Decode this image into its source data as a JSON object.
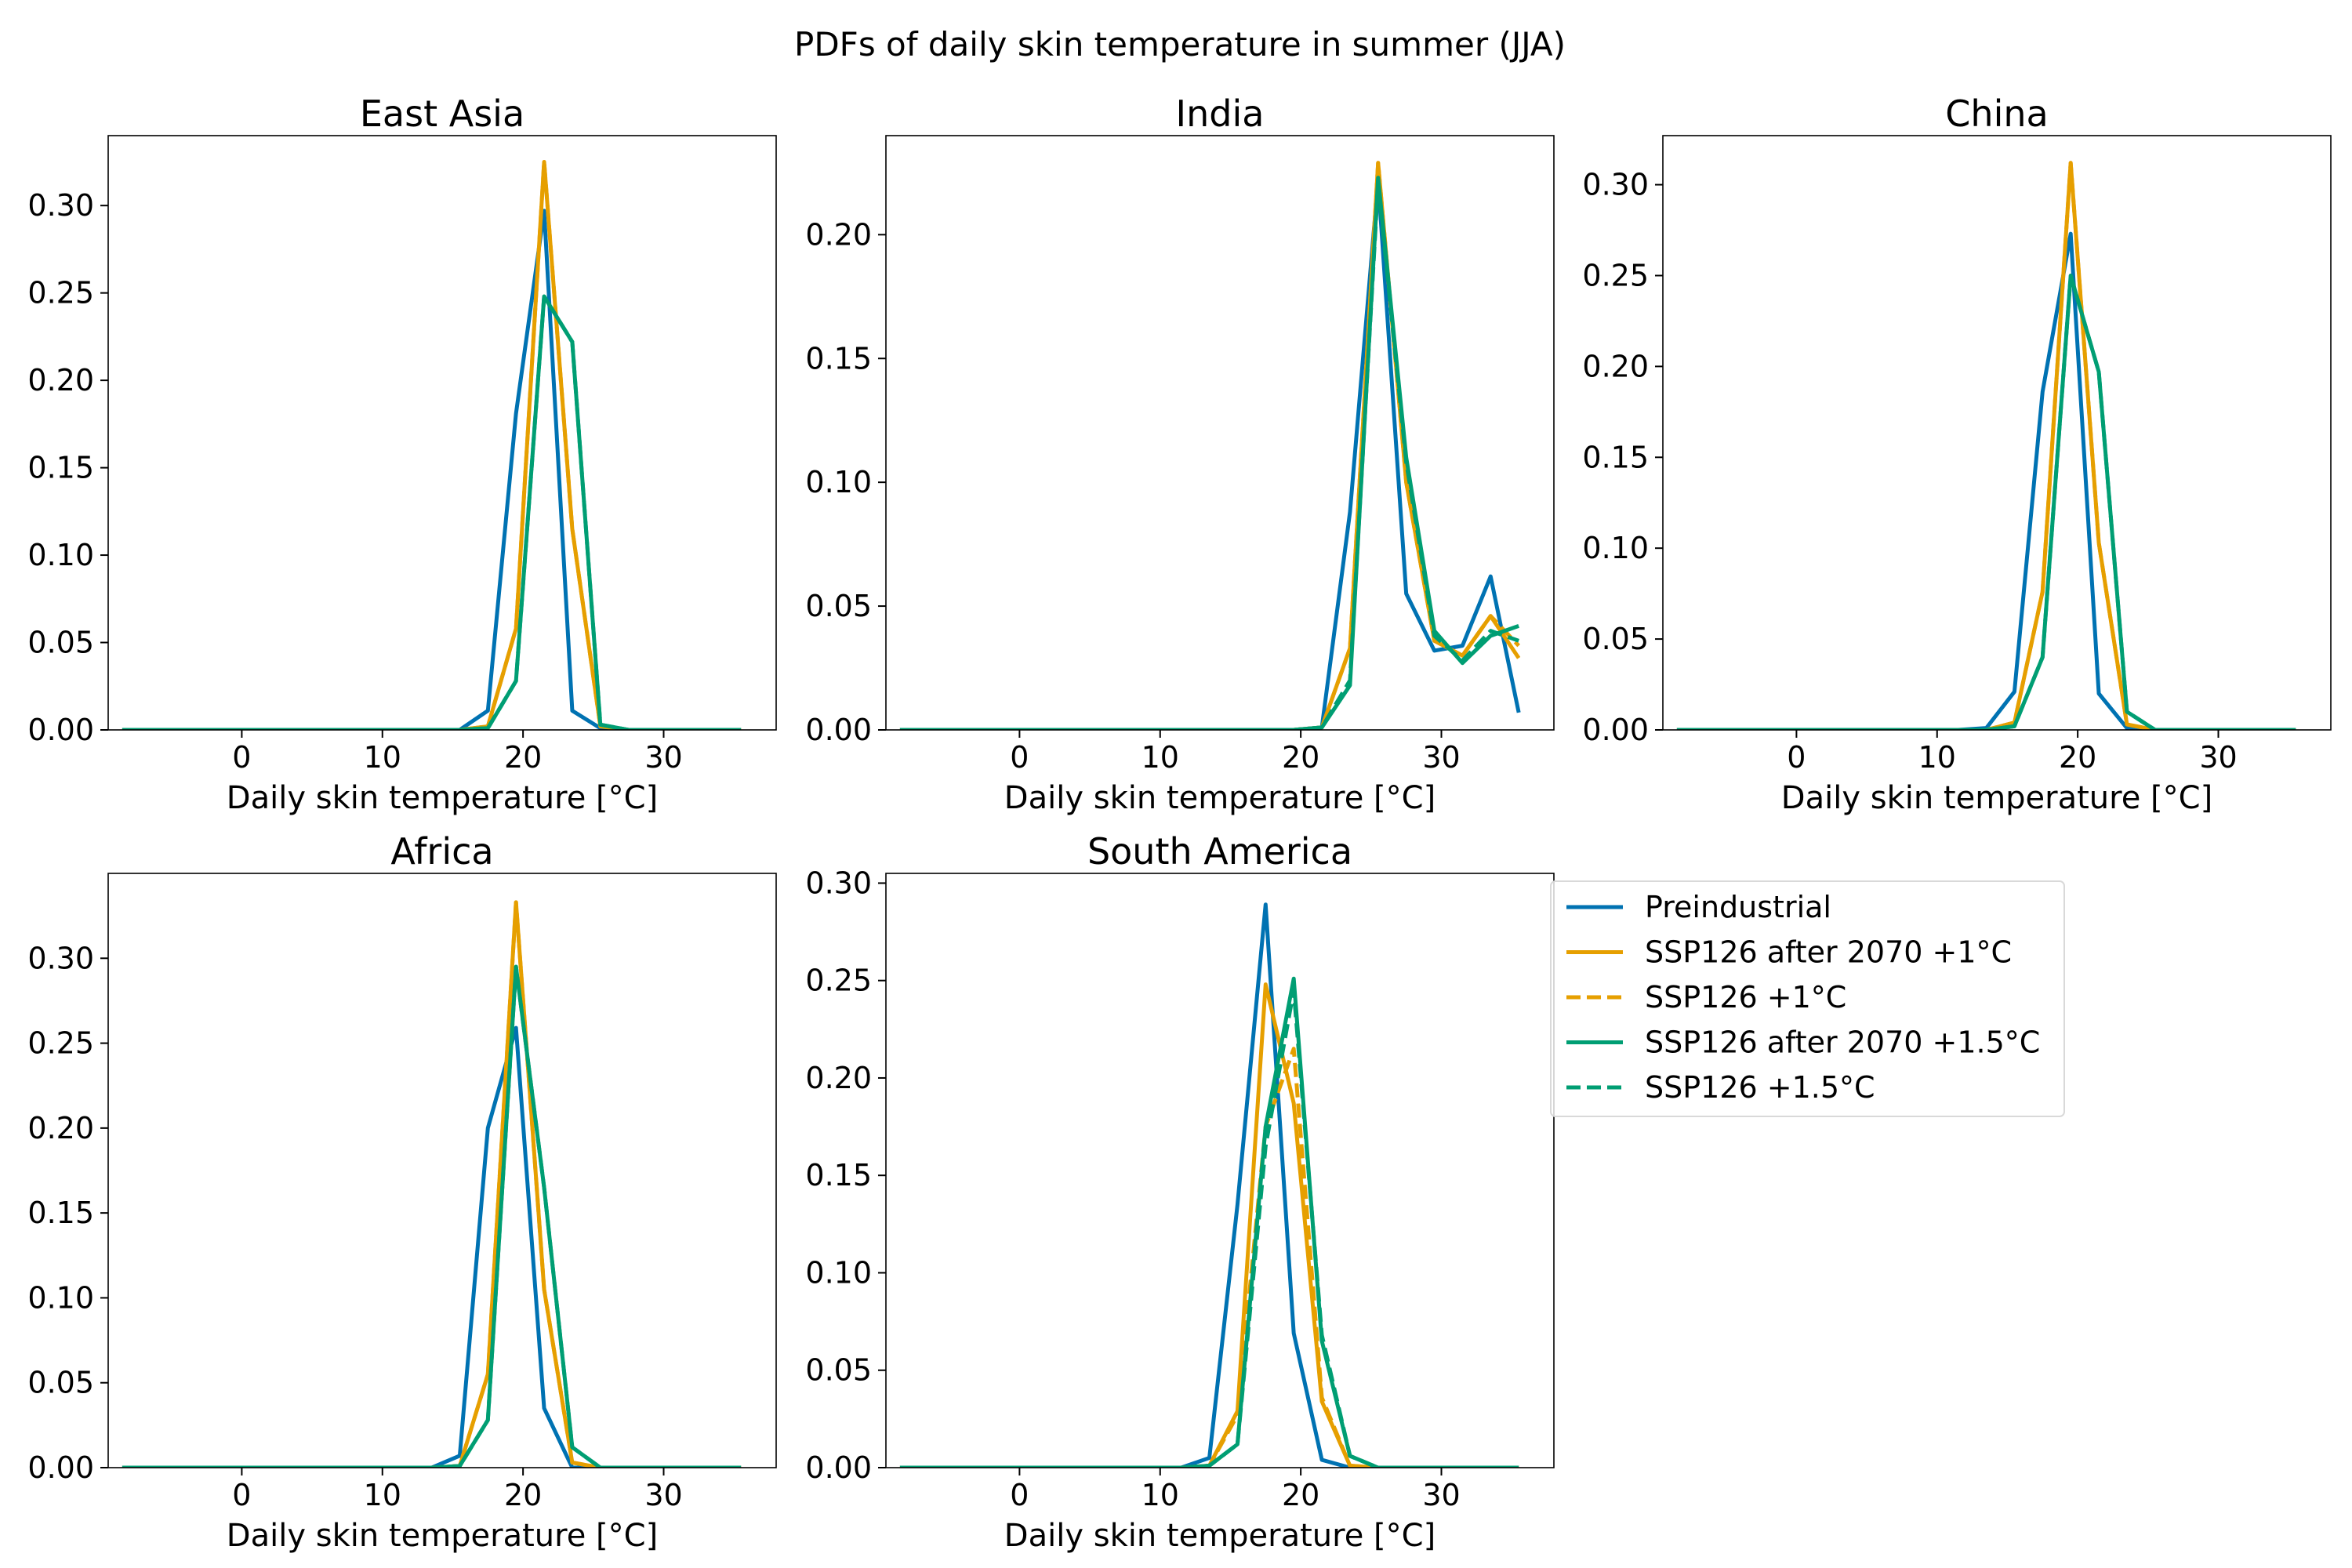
{
  "figure_title": "PDFs of daily skin temperature in summer (JJA)",
  "series_styles": {
    "Preindustrial": {
      "color": "#0072b2",
      "dash": false
    },
    "SSP126 after 2070 +1°C": {
      "color": "#e69f00",
      "dash": false
    },
    "SSP126 +1°C": {
      "color": "#e69f00",
      "dash": true
    },
    "SSP126 after 2070 +1.5°C": {
      "color": "#009e73",
      "dash": false
    },
    "SSP126 +1.5°C": {
      "color": "#009e73",
      "dash": true
    }
  },
  "legend": {
    "position": "right of South America panel",
    "entries": [
      "Preindustrial",
      "SSP126 after 2070 +1°C",
      "SSP126 +1°C",
      "SSP126 after 2070 +1.5°C",
      "SSP126 +1.5°C"
    ]
  },
  "chart_data": [
    {
      "type": "line",
      "title": "East Asia",
      "xlabel": "Daily skin temperature [°C]",
      "ylabel": "",
      "xlim": [
        -9.5,
        38
      ],
      "ylim": [
        0,
        0.34
      ],
      "xticks": [
        0,
        10,
        20,
        30
      ],
      "xtick_labels": [
        "0",
        "10",
        "20",
        "30"
      ],
      "yticks": [
        0,
        0.05,
        0.1,
        0.15,
        0.2,
        0.25,
        0.3
      ],
      "ytick_labels": [
        "0.00",
        "0.05",
        "0.10",
        "0.15",
        "0.20",
        "0.25",
        "0.30"
      ],
      "x": [
        -8.5,
        -6.5,
        -4.5,
        -2.5,
        -0.5,
        1.5,
        3.5,
        5.5,
        7.5,
        9.5,
        11.5,
        13.5,
        15.5,
        17.5,
        19.5,
        21.5,
        23.5,
        25.5,
        27.5,
        29.5,
        31.5,
        33.5,
        35.5
      ],
      "series": [
        {
          "name": "Preindustrial",
          "values": [
            0,
            0,
            0,
            0,
            0,
            0,
            0,
            0,
            0,
            0,
            0,
            0,
            0,
            0.011,
            0.181,
            0.297,
            0.011,
            0.001,
            0,
            0,
            0,
            0,
            0
          ]
        },
        {
          "name": "SSP126 after 2070 +1°C",
          "values": [
            0,
            0,
            0,
            0,
            0,
            0,
            0,
            0,
            0,
            0,
            0,
            0,
            0,
            0.002,
            0.058,
            0.325,
            0.115,
            0.002,
            0,
            0,
            0,
            0,
            0
          ]
        },
        {
          "name": "SSP126 +1°C",
          "values": [
            0,
            0,
            0,
            0,
            0,
            0,
            0,
            0,
            0,
            0,
            0,
            0,
            0,
            0.002,
            0.058,
            0.325,
            0.115,
            0.002,
            0,
            0,
            0,
            0,
            0
          ]
        },
        {
          "name": "SSP126 after 2070 +1.5°C",
          "values": [
            0,
            0,
            0,
            0,
            0,
            0,
            0,
            0,
            0,
            0,
            0,
            0,
            0,
            0.001,
            0.028,
            0.248,
            0.222,
            0.003,
            0,
            0,
            0,
            0,
            0
          ]
        },
        {
          "name": "SSP126 +1.5°C",
          "values": [
            0,
            0,
            0,
            0,
            0,
            0,
            0,
            0,
            0,
            0,
            0,
            0,
            0,
            0.001,
            0.028,
            0.248,
            0.222,
            0.003,
            0,
            0,
            0,
            0,
            0
          ]
        }
      ]
    },
    {
      "type": "line",
      "title": "India",
      "xlabel": "Daily skin temperature [°C]",
      "ylabel": "",
      "xlim": [
        -9.5,
        38
      ],
      "ylim": [
        0,
        0.24
      ],
      "xticks": [
        0,
        10,
        20,
        30
      ],
      "xtick_labels": [
        "0",
        "10",
        "20",
        "30"
      ],
      "yticks": [
        0,
        0.05,
        0.1,
        0.15,
        0.2
      ],
      "ytick_labels": [
        "0.00",
        "0.05",
        "0.10",
        "0.15",
        "0.20"
      ],
      "x": [
        -8.5,
        -6.5,
        -4.5,
        -2.5,
        -0.5,
        1.5,
        3.5,
        5.5,
        7.5,
        9.5,
        11.5,
        13.5,
        15.5,
        17.5,
        19.5,
        21.5,
        23.5,
        25.5,
        27.5,
        29.5,
        31.5,
        33.5,
        35.5
      ],
      "series": [
        {
          "name": "Preindustrial",
          "values": [
            0,
            0,
            0,
            0,
            0,
            0,
            0,
            0,
            0,
            0,
            0,
            0,
            0,
            0,
            0,
            0.001,
            0.088,
            0.222,
            0.055,
            0.032,
            0.034,
            0.062,
            0.007
          ]
        },
        {
          "name": "SSP126 after 2070 +1°C",
          "values": [
            0,
            0,
            0,
            0,
            0,
            0,
            0,
            0,
            0,
            0,
            0,
            0,
            0,
            0,
            0,
            0.001,
            0.033,
            0.229,
            0.1,
            0.036,
            0.03,
            0.046,
            0.029
          ]
        },
        {
          "name": "SSP126 +1°C",
          "values": [
            0,
            0,
            0,
            0,
            0,
            0,
            0,
            0,
            0,
            0,
            0,
            0,
            0,
            0,
            0,
            0.001,
            0.033,
            0.229,
            0.1,
            0.036,
            0.03,
            0.046,
            0.034
          ]
        },
        {
          "name": "SSP126 after 2070 +1.5°C",
          "values": [
            0,
            0,
            0,
            0,
            0,
            0,
            0,
            0,
            0,
            0,
            0,
            0,
            0,
            0,
            0,
            0.001,
            0.018,
            0.223,
            0.11,
            0.04,
            0.027,
            0.038,
            0.042
          ]
        },
        {
          "name": "SSP126 +1.5°C",
          "values": [
            0,
            0,
            0,
            0,
            0,
            0,
            0,
            0,
            0,
            0,
            0,
            0,
            0,
            0,
            0,
            0.001,
            0.02,
            0.221,
            0.108,
            0.038,
            0.028,
            0.04,
            0.036
          ]
        }
      ]
    },
    {
      "type": "line",
      "title": "China",
      "xlabel": "Daily skin temperature [°C]",
      "ylabel": "",
      "xlim": [
        -9.5,
        38
      ],
      "ylim": [
        0,
        0.327
      ],
      "xticks": [
        0,
        10,
        20,
        30
      ],
      "xtick_labels": [
        "0",
        "10",
        "20",
        "30"
      ],
      "yticks": [
        0,
        0.05,
        0.1,
        0.15,
        0.2,
        0.25,
        0.3
      ],
      "ytick_labels": [
        "0.00",
        "0.05",
        "0.10",
        "0.15",
        "0.20",
        "0.25",
        "0.30"
      ],
      "x": [
        -8.5,
        -6.5,
        -4.5,
        -2.5,
        -0.5,
        1.5,
        3.5,
        5.5,
        7.5,
        9.5,
        11.5,
        13.5,
        15.5,
        17.5,
        19.5,
        21.5,
        23.5,
        25.5,
        27.5,
        29.5,
        31.5,
        33.5,
        35.5
      ],
      "series": [
        {
          "name": "Preindustrial",
          "values": [
            0,
            0,
            0,
            0,
            0,
            0,
            0,
            0,
            0,
            0,
            0,
            0.001,
            0.021,
            0.186,
            0.273,
            0.02,
            0.001,
            0,
            0,
            0,
            0,
            0,
            0
          ]
        },
        {
          "name": "SSP126 after 2070 +1°C",
          "values": [
            0,
            0,
            0,
            0,
            0,
            0,
            0,
            0,
            0,
            0,
            0,
            0,
            0.004,
            0.076,
            0.312,
            0.103,
            0.003,
            0,
            0,
            0,
            0,
            0,
            0
          ]
        },
        {
          "name": "SSP126 +1°C",
          "values": [
            0,
            0,
            0,
            0,
            0,
            0,
            0,
            0,
            0,
            0,
            0,
            0,
            0.004,
            0.076,
            0.312,
            0.103,
            0.003,
            0,
            0,
            0,
            0,
            0,
            0
          ]
        },
        {
          "name": "SSP126 after 2070 +1.5°C",
          "values": [
            0,
            0,
            0,
            0,
            0,
            0,
            0,
            0,
            0,
            0,
            0,
            0,
            0.002,
            0.04,
            0.25,
            0.197,
            0.01,
            0,
            0,
            0,
            0,
            0,
            0
          ]
        },
        {
          "name": "SSP126 +1.5°C",
          "values": [
            0,
            0,
            0,
            0,
            0,
            0,
            0,
            0,
            0,
            0,
            0,
            0,
            0.002,
            0.04,
            0.25,
            0.197,
            0.01,
            0,
            0,
            0,
            0,
            0,
            0
          ]
        }
      ]
    },
    {
      "type": "line",
      "title": "Africa",
      "xlabel": "Daily skin temperature [°C]",
      "ylabel": "",
      "xlim": [
        -9.5,
        38
      ],
      "ylim": [
        0,
        0.35
      ],
      "xticks": [
        0,
        10,
        20,
        30
      ],
      "xtick_labels": [
        "0",
        "10",
        "20",
        "30"
      ],
      "yticks": [
        0,
        0.05,
        0.1,
        0.15,
        0.2,
        0.25,
        0.3
      ],
      "ytick_labels": [
        "0.00",
        "0.05",
        "0.10",
        "0.15",
        "0.20",
        "0.25",
        "0.30"
      ],
      "x": [
        -8.5,
        -6.5,
        -4.5,
        -2.5,
        -0.5,
        1.5,
        3.5,
        5.5,
        7.5,
        9.5,
        11.5,
        13.5,
        15.5,
        17.5,
        19.5,
        21.5,
        23.5,
        25.5,
        27.5,
        29.5,
        31.5,
        33.5,
        35.5
      ],
      "series": [
        {
          "name": "Preindustrial",
          "values": [
            0,
            0,
            0,
            0,
            0,
            0,
            0,
            0,
            0,
            0,
            0,
            0,
            0.007,
            0.2,
            0.259,
            0.035,
            0,
            0,
            0,
            0,
            0,
            0,
            0
          ]
        },
        {
          "name": "SSP126 after 2070 +1°C",
          "values": [
            0,
            0,
            0,
            0,
            0,
            0,
            0,
            0,
            0,
            0,
            0,
            0,
            0.001,
            0.055,
            0.333,
            0.105,
            0.003,
            0,
            0,
            0,
            0,
            0,
            0
          ]
        },
        {
          "name": "SSP126 +1°C",
          "values": [
            0,
            0,
            0,
            0,
            0,
            0,
            0,
            0,
            0,
            0,
            0,
            0,
            0.001,
            0.055,
            0.333,
            0.105,
            0.003,
            0,
            0,
            0,
            0,
            0,
            0
          ]
        },
        {
          "name": "SSP126 after 2070 +1.5°C",
          "values": [
            0,
            0,
            0,
            0,
            0,
            0,
            0,
            0,
            0,
            0,
            0,
            0,
            0.001,
            0.028,
            0.295,
            0.165,
            0.012,
            0,
            0,
            0,
            0,
            0,
            0
          ]
        },
        {
          "name": "SSP126 +1.5°C",
          "values": [
            0,
            0,
            0,
            0,
            0,
            0,
            0,
            0,
            0,
            0,
            0,
            0,
            0.001,
            0.028,
            0.295,
            0.165,
            0.012,
            0,
            0,
            0,
            0,
            0,
            0
          ]
        }
      ]
    },
    {
      "type": "line",
      "title": "South America",
      "xlabel": "Daily skin temperature [°C]",
      "ylabel": "",
      "xlim": [
        -9.5,
        38
      ],
      "ylim": [
        0,
        0.305
      ],
      "xticks": [
        0,
        10,
        20,
        30
      ],
      "xtick_labels": [
        "0",
        "10",
        "20",
        "30"
      ],
      "yticks": [
        0,
        0.05,
        0.1,
        0.15,
        0.2,
        0.25,
        0.3
      ],
      "ytick_labels": [
        "0.00",
        "0.05",
        "0.10",
        "0.15",
        "0.20",
        "0.25",
        "0.30"
      ],
      "x": [
        -8.5,
        -6.5,
        -4.5,
        -2.5,
        -0.5,
        1.5,
        3.5,
        5.5,
        7.5,
        9.5,
        11.5,
        13.5,
        15.5,
        17.5,
        19.5,
        21.5,
        23.5,
        25.5,
        27.5,
        29.5,
        31.5,
        33.5,
        35.5
      ],
      "series": [
        {
          "name": "Preindustrial",
          "values": [
            0,
            0,
            0,
            0,
            0,
            0,
            0,
            0,
            0,
            0,
            0,
            0.005,
            0.135,
            0.289,
            0.069,
            0.004,
            0,
            0,
            0,
            0,
            0,
            0,
            0
          ]
        },
        {
          "name": "SSP126 after 2070 +1°C",
          "values": [
            0,
            0,
            0,
            0,
            0,
            0,
            0,
            0,
            0,
            0,
            0,
            0.001,
            0.029,
            0.248,
            0.187,
            0.034,
            0.001,
            0,
            0,
            0,
            0,
            0,
            0
          ]
        },
        {
          "name": "SSP126 +1°C",
          "values": [
            0,
            0,
            0,
            0,
            0,
            0,
            0,
            0,
            0,
            0,
            0,
            0.001,
            0.027,
            0.175,
            0.215,
            0.036,
            0.001,
            0,
            0,
            0,
            0,
            0,
            0
          ]
        },
        {
          "name": "SSP126 after 2070 +1.5°C",
          "values": [
            0,
            0,
            0,
            0,
            0,
            0,
            0,
            0,
            0,
            0,
            0,
            0.001,
            0.012,
            0.175,
            0.251,
            0.065,
            0.006,
            0,
            0,
            0,
            0,
            0,
            0
          ]
        },
        {
          "name": "SSP126 +1.5°C",
          "values": [
            0,
            0,
            0,
            0,
            0,
            0,
            0,
            0,
            0,
            0,
            0,
            0.001,
            0.012,
            0.165,
            0.245,
            0.068,
            0.006,
            0,
            0,
            0,
            0,
            0,
            0
          ]
        }
      ]
    }
  ]
}
